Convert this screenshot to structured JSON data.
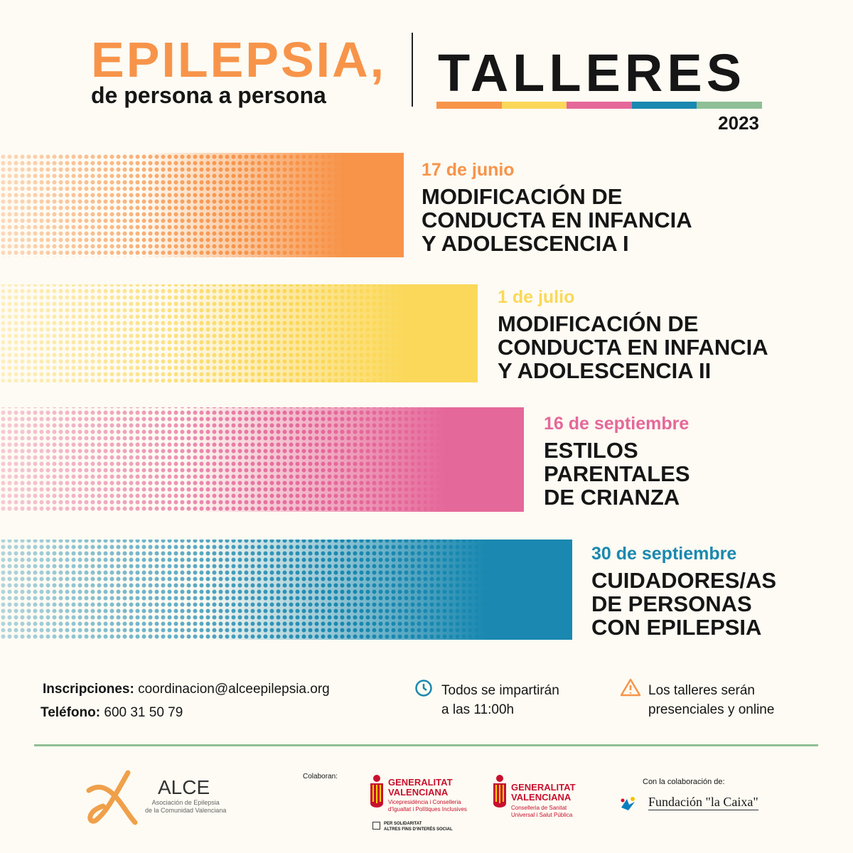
{
  "header": {
    "title": "EPILEPSIA,",
    "subtitle": "de persona a persona",
    "talleres": "TALLERES",
    "year": "2023"
  },
  "workshops": [
    {
      "date": "17 de junio",
      "title": [
        "MODIFICACIÓN DE",
        "CONDUCTA EN INFANCIA",
        "Y ADOLESCENCIA I"
      ],
      "color": "#f7944a"
    },
    {
      "date": "1 de julio",
      "title": [
        "MODIFICACIÓN DE",
        "CONDUCTA EN INFANCIA",
        "Y ADOLESCENCIA II"
      ],
      "color": "#fbd85a"
    },
    {
      "date": "16 de septiembre",
      "title": [
        "ESTILOS",
        "PARENTALES",
        "DE CRIANZA"
      ],
      "color": "#e5689a"
    },
    {
      "date": "30 de septiembre",
      "title": [
        "CUIDADORES/AS",
        "DE PERSONAS",
        "CON EPILEPSIA"
      ],
      "color": "#1a88b0"
    }
  ],
  "info": {
    "inscripciones_label": "Inscripciones:",
    "email": "coordinacion@alceepilepsia.org",
    "telefono_label": "Teléfono:",
    "telefono": "600 31 50 79",
    "horario": [
      "Todos se impartirán",
      "a las 11:00h"
    ],
    "modalidad": [
      "Los talleres serán",
      "presenciales y online"
    ]
  },
  "logos": {
    "alce": "ALCE",
    "alce_sub": [
      "Asociación de Epilepsia",
      "de la Comunidad Valenciana"
    ],
    "colaboran": "Colaboran:",
    "gva1": [
      "GENERALITAT",
      "VALENCIANA"
    ],
    "gva1_sub": [
      "Vicepresidència i Conselleria",
      "d'Igualtat i Polítiques Inclusives"
    ],
    "solidaritat": [
      "PER SOLIDARITAT",
      "ALTRES FINS D'INTERÈS SOCIAL"
    ],
    "gva2": [
      "GENERALITAT",
      "VALENCIANA"
    ],
    "gva2_sub": [
      "Conselleria de Sanitat",
      "Universal i Salut Pública"
    ],
    "con_colaboracion": "Con la colaboración de:",
    "fundacion": "Fundación \"la Caixa\""
  }
}
